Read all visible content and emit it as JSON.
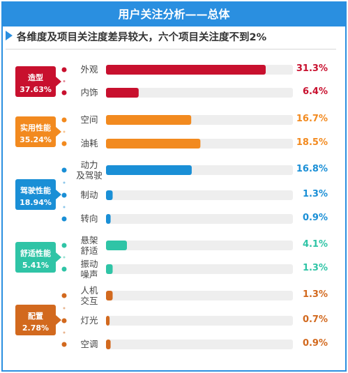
{
  "header": {
    "title": "用户关注分析——总体"
  },
  "subtitle": "各维度及项目关注度差异较大，六个项目关注度不到2%",
  "chart_data": {
    "type": "bar",
    "orientation": "horizontal",
    "xlim": [
      0,
      100
    ],
    "unit": "%",
    "groups": [
      {
        "name": "造型",
        "share": "37.63%",
        "color": "#c8102e",
        "items": [
          {
            "label": "外观",
            "value": 31.3,
            "display": "31.3%"
          },
          {
            "label": "内饰",
            "value": 6.4,
            "display": "6.4%"
          }
        ]
      },
      {
        "name": "实用性能",
        "share": "35.24%",
        "color": "#f28a1f",
        "items": [
          {
            "label": "空间",
            "value": 16.7,
            "display": "16.7%"
          },
          {
            "label": "油耗",
            "value": 18.5,
            "display": "18.5%"
          }
        ]
      },
      {
        "name": "驾驶性能",
        "share": "18.94%",
        "color": "#1a8fd6",
        "items": [
          {
            "label": "动力及驾驶",
            "value": 16.8,
            "display": "16.8%"
          },
          {
            "label": "制动",
            "value": 1.3,
            "display": "1.3%"
          },
          {
            "label": "转向",
            "value": 0.9,
            "display": "0.9%"
          }
        ]
      },
      {
        "name": "舒适性能",
        "share": "5.41%",
        "color": "#2fc4a6",
        "items": [
          {
            "label": "悬架舒适",
            "value": 4.1,
            "display": "4.1%"
          },
          {
            "label": "振动噪声",
            "value": 1.3,
            "display": "1.3%"
          }
        ]
      },
      {
        "name": "配置",
        "share": "2.78%",
        "color": "#d2691e",
        "items": [
          {
            "label": "人机交互",
            "value": 1.3,
            "display": "1.3%"
          },
          {
            "label": "灯光",
            "value": 0.7,
            "display": "0.7%"
          },
          {
            "label": "空调",
            "value": 0.9,
            "display": "0.9%"
          }
        ]
      }
    ]
  }
}
